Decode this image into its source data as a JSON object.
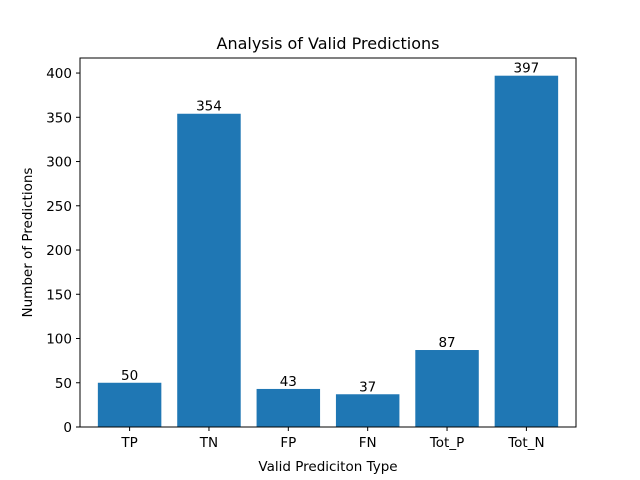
{
  "chart_data": {
    "type": "bar",
    "title": "Analysis of Valid Predictions",
    "xlabel": "Valid Prediciton Type",
    "ylabel": "Number of Predictions",
    "categories": [
      "TP",
      "TN",
      "FP",
      "FN",
      "Tot_P",
      "Tot_N"
    ],
    "values": [
      50,
      354,
      43,
      37,
      87,
      397
    ],
    "data_labels": [
      "50",
      "354",
      "43",
      "37",
      "87",
      "397"
    ],
    "ylim": [
      0,
      417
    ],
    "yticks": [
      0,
      50,
      100,
      150,
      200,
      250,
      300,
      350,
      400
    ],
    "bar_color": "#1f77b4",
    "grid": false,
    "legend": "none"
  }
}
